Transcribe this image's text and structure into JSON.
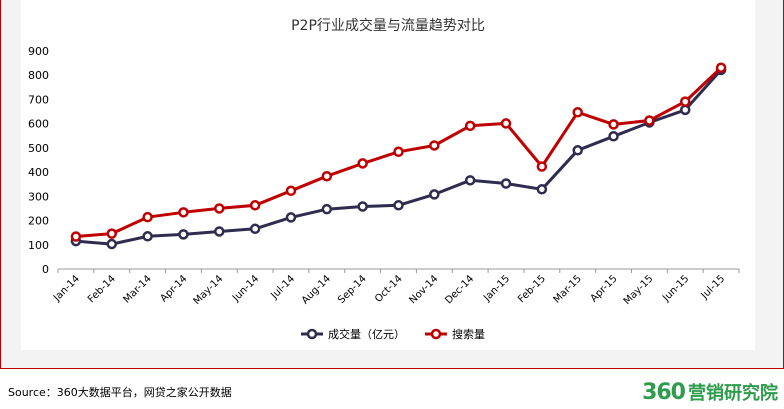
{
  "chart_data": {
    "type": "line",
    "title": "P2P行业成交量与流量趋势对比",
    "categories": [
      "Jan-14",
      "Feb-14",
      "Mar-14",
      "Apr-14",
      "May-14",
      "Jun-14",
      "Jul-14",
      "Aug-14",
      "Sep-14",
      "Oct-14",
      "Nov-14",
      "Dec-14",
      "Jan-15",
      "Feb-15",
      "Mar-15",
      "Apr-15",
      "May-15",
      "Jun-15",
      "Jul-15"
    ],
    "yticks": [
      "0",
      "100",
      "200",
      "300",
      "400",
      "500",
      "600",
      "700",
      "800",
      "900"
    ],
    "ylim": [
      0,
      900
    ],
    "grid": false,
    "legend_position": "bottom",
    "series": [
      {
        "name": "成交量（亿元）",
        "color": "#2f2c4f",
        "values": [
          115,
          103,
          135,
          143,
          155,
          166,
          213,
          247,
          258,
          263,
          308,
          366,
          353,
          329,
          490,
          548,
          605,
          657,
          822
        ]
      },
      {
        "name": "搜索量",
        "color": "#c00000",
        "values": [
          134,
          146,
          214,
          234,
          250,
          263,
          323,
          383,
          436,
          484,
          510,
          591,
          601,
          423,
          647,
          597,
          613,
          691,
          831
        ]
      }
    ]
  },
  "footer": {
    "source": "Source：360大数据平台，网贷之家公开数据",
    "brand_number": "360",
    "brand_text": "营销研究院"
  }
}
